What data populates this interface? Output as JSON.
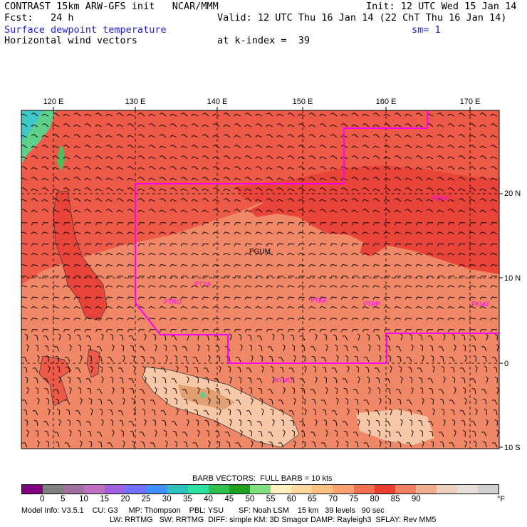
{
  "header": {
    "title": "CONTRAST 15km ARW-GFS init   NCAR/MMM",
    "init": "Init: 12 UTC Wed 15 Jan 14",
    "fcst": "Fcst:   24 h",
    "valid": "Valid: 12 UTC Thu 16 Jan 14 (22 ChT Thu 16 Jan 14)",
    "field": "Surface dewpoint temperature",
    "smoothing": "sm= 1",
    "vectors": "Horizontal wind vectors",
    "kindex": "at k-index =  39"
  },
  "map": {
    "lon_labels": [
      "120 E",
      "130 E",
      "140 E",
      "150 E",
      "160 E",
      "170 E"
    ],
    "lat_labels": [
      "20 N",
      "10 N",
      "0",
      "10 S"
    ],
    "stations": [
      "PGUM",
      "PGAC",
      "PTYA",
      "PTRO",
      "PTKK",
      "PTPP",
      "PKMJ",
      "AYMO"
    ],
    "colors": {
      "deep_red": "#e8443a",
      "red": "#ee5a48",
      "salmon": "#f08868",
      "light_salmon": "#f6c8a8",
      "green": "#5fd08a",
      "border": "#ff00ff"
    }
  },
  "colorbar": {
    "title": "BARB VECTORS:  FULL BARB = 10 kts",
    "ticks": [
      "0",
      "5",
      "10",
      "15",
      "20",
      "25",
      "30",
      "35",
      "40",
      "45",
      "50",
      "55",
      "60",
      "65",
      "70",
      "75",
      "80",
      "85",
      "90"
    ],
    "unit": "°F",
    "colors": [
      "#800080",
      "#808080",
      "#a070a0",
      "#c070c0",
      "#a060e0",
      "#7070ff",
      "#4090ff",
      "#30c0c0",
      "#30e0a0",
      "#30c050",
      "#20a020",
      "#80e080",
      "#fff0c0",
      "#ffd8a0",
      "#ffc080",
      "#ffa070",
      "#f07050",
      "#e84030",
      "#f08060",
      "#f0b090",
      "#f0d0c0",
      "#e8e0d8",
      "#d0d0d0"
    ]
  },
  "footer": {
    "line1": "Model Info: V3.5.1    CU: G3     MP: Thompson    PBL: YSU       SF: Noah LSM    15 km   39 levels   90 sec",
    "line2": "LW: RRTMG   SW: RRTMG  DIFF: simple KM: 3D Smagor DAMP: Rayleigh3  SFLAY: Rev MM5"
  }
}
